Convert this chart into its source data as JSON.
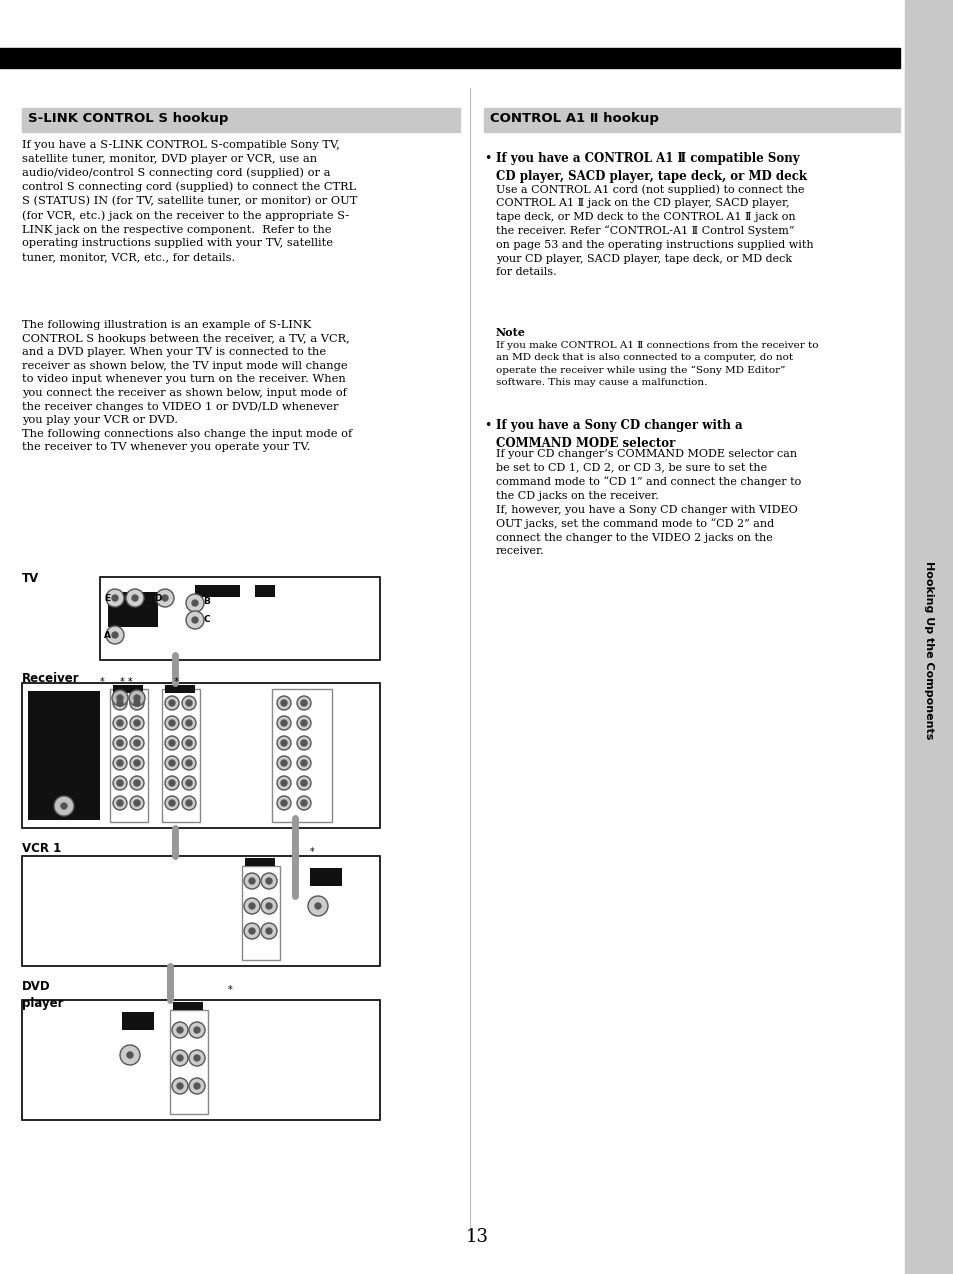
{
  "bg_color": "#ffffff",
  "page_number": "13",
  "top_bar_color": "#000000",
  "sidebar_bg": "#c8c8c8",
  "sidebar_text": "Hooking Up the Components",
  "left_header_bg": "#c8c8c8",
  "left_header_text": "S-LINK CONTROL S hookup",
  "right_header_bg": "#c8c8c8",
  "right_header_text": "CONTROL A1 Ⅱ hookup",
  "left_para1": "If you have a S-LINK CONTROL S-compatible Sony TV,\nsatellite tuner, monitor, DVD player or VCR, use an\naudio/video/control S connecting cord (supplied) or a\ncontrol S connecting cord (supplied) to connect the CTRL\nS (STATUS) IN (for TV, satellite tuner, or monitor) or OUT\n(for VCR, etc.) jack on the receiver to the appropriate S-\nLINK jack on the respective component.  Refer to the\noperating instructions supplied with your TV, satellite\ntuner, monitor, VCR, etc., for details.",
  "left_para2": "The following illustration is an example of S-LINK\nCONTROL S hookups between the receiver, a TV, a VCR,\nand a DVD player. When your TV is connected to the\nreceiver as shown below, the TV input mode will change\nto video input whenever you turn on the receiver. When\nyou connect the receiver as shown below, input mode of\nthe receiver changes to VIDEO 1 or DVD/LD whenever\nyou play your VCR or DVD.\nThe following connections also change the input mode of\nthe receiver to TV whenever you operate your TV.",
  "right_bullet1_bold": "If you have a CONTROL A1 Ⅱ compatible Sony\nCD player, SACD player, tape deck, or MD deck",
  "right_bullet1_text": "Use a CONTROL A1 cord (not supplied) to connect the\nCONTROL A1 Ⅱ jack on the CD player, SACD player,\ntape deck, or MD deck to the CONTROL A1 Ⅱ jack on\nthe receiver. Refer “CONTROL-A1 Ⅱ Control System”\non page 53 and the operating instructions supplied with\nyour CD player, SACD player, tape deck, or MD deck\nfor details.",
  "right_note_title": "Note",
  "right_note_text": "If you make CONTROL A1 Ⅱ connections from the receiver to\nan MD deck that is also connected to a computer, do not\noperate the receiver while using the “Sony MD Editor”\nsoftware. This may cause a malfunction.",
  "right_bullet2_bold": "If you have a Sony CD changer with a\nCOMMAND MODE selector",
  "right_bullet2_text": "If your CD changer’s COMMAND MODE selector can\nbe set to CD 1, CD 2, or CD 3, be sure to set the\ncommand mode to “CD 1” and connect the changer to\nthe CD jacks on the receiver.\nIf, however, you have a Sony CD changer with VIDEO\nOUT jacks, set the command mode to “CD 2” and\nconnect the changer to the VIDEO 2 jacks on the\nreceiver.",
  "diagram_tv_label": "TV",
  "diagram_receiver_label": "Receiver",
  "diagram_vcr_label": "VCR 1",
  "diagram_dvd_label": "DVD\nplayer"
}
